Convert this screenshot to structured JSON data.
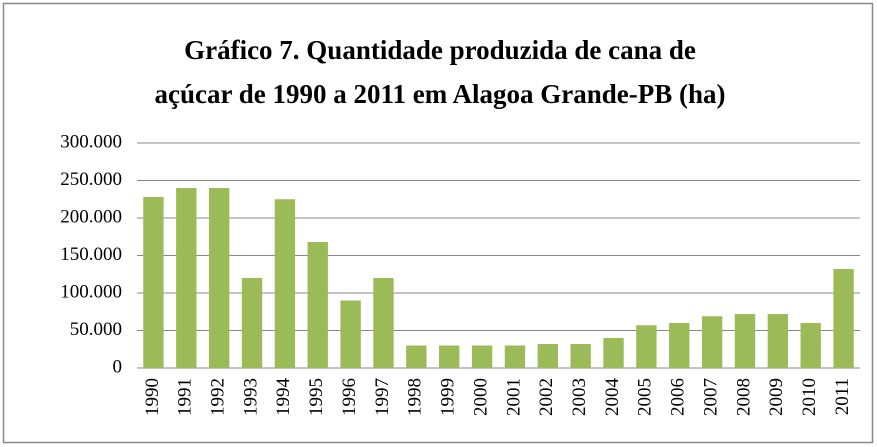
{
  "chart_data": {
    "type": "bar",
    "title": [
      "Gráfico 7. Quantidade produzida de cana de",
      "açúcar de 1990 a 2011 em Alagoa Grande-PB (ha)"
    ],
    "categories": [
      "1990",
      "1991",
      "1992",
      "1993",
      "1994",
      "1995",
      "1996",
      "1997",
      "1998",
      "1999",
      "2000",
      "2001",
      "2002",
      "2003",
      "2004",
      "2005",
      "2006",
      "2007",
      "2008",
      "2009",
      "2010",
      "2011"
    ],
    "values": [
      228000,
      240000,
      240000,
      120000,
      225000,
      168000,
      90000,
      120000,
      30000,
      30000,
      30000,
      30000,
      32000,
      32000,
      40000,
      57000,
      60000,
      69000,
      72000,
      72000,
      60000,
      132000
    ],
    "color": "#9bbb59",
    "ylim": [
      0,
      300000
    ],
    "yticks": [
      0,
      {
        "value": 50000,
        "label": "50.000"
      },
      {
        "value": 100000,
        "label": "100.000"
      },
      {
        "value": 150000,
        "label": "150.000"
      },
      {
        "value": 200000,
        "label": "200.000"
      },
      {
        "value": 250000,
        "label": "250.000"
      },
      {
        "value": 300000,
        "label": "300.000"
      }
    ],
    "grid": true
  }
}
